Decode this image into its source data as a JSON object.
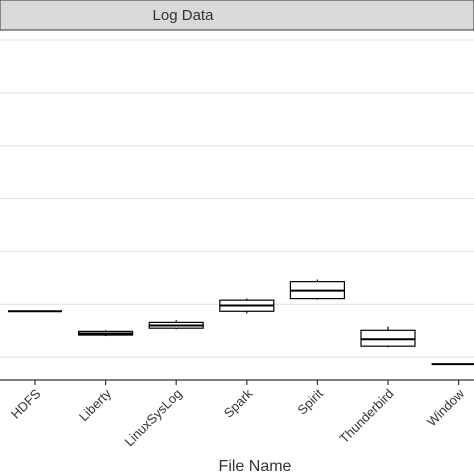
{
  "chart_data": {
    "type": "box",
    "strip_title": "Log Data",
    "x_label": "File Name",
    "categories": [
      "HDFS",
      "Liberty",
      "LinuxSysLog",
      "Spark",
      "Spirit",
      "Thunderbird",
      "Window"
    ],
    "min": [
      1.87,
      1.4,
      1.53,
      1.83,
      2.09,
      1.19,
      0.87
    ],
    "q1": [
      1.87,
      1.42,
      1.55,
      1.87,
      2.11,
      1.21,
      0.87
    ],
    "median": [
      1.87,
      1.45,
      1.6,
      1.98,
      2.26,
      1.34,
      0.87
    ],
    "q3": [
      1.87,
      1.49,
      1.66,
      2.08,
      2.43,
      1.51,
      0.87
    ],
    "max": [
      1.87,
      1.51,
      1.7,
      2.11,
      2.47,
      1.58,
      0.87
    ],
    "ylim": [
      0.57,
      7.19
    ],
    "ygrid": [
      1,
      2,
      3,
      4,
      5,
      6,
      7
    ],
    "grid": true,
    "color": "#000000"
  }
}
